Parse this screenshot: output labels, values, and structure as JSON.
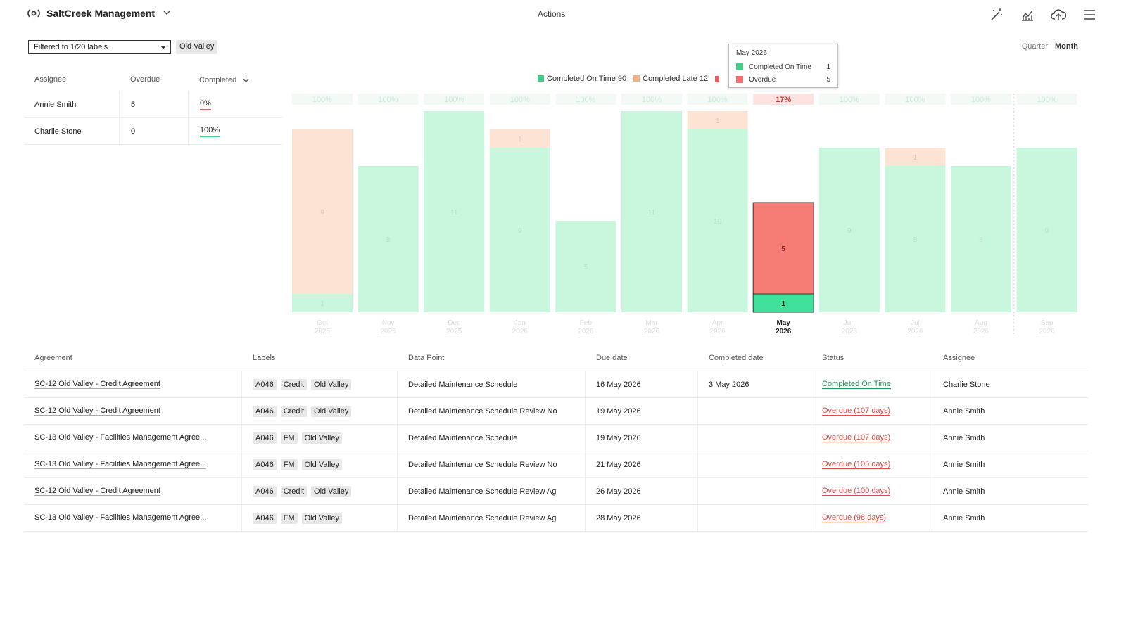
{
  "app": {
    "title": "SaltCreek Management",
    "actions_label": "Actions"
  },
  "header_icons": [
    "magic-wand-icon",
    "chart-icon",
    "cloud-upload-icon",
    "menu-icon"
  ],
  "filter": {
    "select_value": "Filtered to 1/20 labels",
    "chip": "Old Valley"
  },
  "period": {
    "quarter": "Quarter",
    "month": "Month",
    "selected": "Month"
  },
  "assignee_table": {
    "headers": [
      "Assignee",
      "Overdue",
      "Completed"
    ],
    "rows": [
      {
        "name": "Annie Smith",
        "overdue": "5",
        "completed": "0%",
        "bar_color": "#e06060"
      },
      {
        "name": "Charlie Stone",
        "overdue": "0",
        "completed": "100%",
        "bar_color": "#3fcf8a"
      }
    ]
  },
  "legend": {
    "items": [
      {
        "label": "Completed On Time 90",
        "color": "#3fcf8a"
      },
      {
        "label": "Completed Late 12",
        "color": "#f4b183"
      }
    ],
    "clipped_color": "#e06060"
  },
  "tooltip": {
    "title": "May 2026",
    "rows": [
      {
        "label": "Completed On Time",
        "value": "1",
        "color": "#3fcf8a"
      },
      {
        "label": "Overdue",
        "value": "5",
        "color": "#f07070"
      }
    ]
  },
  "colors": {
    "on_time_faded": "#c8f7de",
    "late_faded": "#fde3d4",
    "on_time": "#3fe09a",
    "overdue": "#f47c74",
    "pct_faded_bg": "#f3faf6",
    "pct_hl_bg": "#fde2e2"
  },
  "chart_data": {
    "type": "bar",
    "stacked": true,
    "categories": [
      [
        "Oct",
        "2025"
      ],
      [
        "Nov",
        "2025"
      ],
      [
        "Dec",
        "2025"
      ],
      [
        "Jan",
        "2026"
      ],
      [
        "Feb",
        "2026"
      ],
      [
        "Mar",
        "2026"
      ],
      [
        "Apr",
        "2026"
      ],
      [
        "May",
        "2026"
      ],
      [
        "Jun",
        "2026"
      ],
      [
        "Jul",
        "2026"
      ],
      [
        "Aug",
        "2026"
      ],
      [
        "Sep",
        "2026"
      ]
    ],
    "series": [
      {
        "name": "Completed On Time",
        "values": [
          1,
          8,
          11,
          9,
          5,
          11,
          10,
          1,
          9,
          8,
          8,
          9
        ]
      },
      {
        "name": "Completed Late",
        "values": [
          9,
          0,
          0,
          1,
          0,
          0,
          1,
          0,
          0,
          1,
          0,
          0
        ]
      },
      {
        "name": "Overdue",
        "values": [
          0,
          0,
          0,
          0,
          0,
          0,
          0,
          5,
          0,
          0,
          0,
          0
        ]
      }
    ],
    "percent_labels": [
      "100%",
      "100%",
      "100%",
      "100%",
      "100%",
      "100%",
      "100%",
      "17%",
      "100%",
      "100%",
      "100%",
      "100%"
    ],
    "highlight_index": 7,
    "current_marker_after_index": 10,
    "ylim": [
      0,
      11
    ]
  },
  "main_table": {
    "headers": [
      "Agreement",
      "Labels",
      "Data Point",
      "Due date",
      "Completed date",
      "Status",
      "Assignee"
    ],
    "rows": [
      {
        "agreement": "SC-12 Old Valley - Credit Agreement",
        "labels": [
          "A046",
          "Credit",
          "Old Valley"
        ],
        "data_point": "Detailed Maintenance Schedule",
        "due": "16 May 2026",
        "completed": "3 May 2026",
        "status": "Completed On Time",
        "status_kind": "ok",
        "assignee": "Charlie Stone"
      },
      {
        "agreement": "SC-12 Old Valley - Credit Agreement",
        "labels": [
          "A046",
          "Credit",
          "Old Valley"
        ],
        "data_point": "Detailed Maintenance Schedule Review No",
        "due": "19 May 2026",
        "completed": "",
        "status": "Overdue (107 days)",
        "status_kind": "bad",
        "assignee": "Annie Smith"
      },
      {
        "agreement": "SC-13 Old Valley - Facilities Management Agree...",
        "labels": [
          "A046",
          "FM",
          "Old Valley"
        ],
        "data_point": "Detailed Maintenance Schedule",
        "due": "19 May 2026",
        "completed": "",
        "status": "Overdue (107 days)",
        "status_kind": "bad",
        "assignee": "Annie Smith"
      },
      {
        "agreement": "SC-13 Old Valley - Facilities Management Agree...",
        "labels": [
          "A046",
          "FM",
          "Old Valley"
        ],
        "data_point": "Detailed Maintenance Schedule Review No",
        "due": "21 May 2026",
        "completed": "",
        "status": "Overdue (105 days)",
        "status_kind": "bad",
        "assignee": "Annie Smith"
      },
      {
        "agreement": "SC-12 Old Valley - Credit Agreement",
        "labels": [
          "A046",
          "Credit",
          "Old Valley"
        ],
        "data_point": "Detailed Maintenance Schedule Review Ag",
        "due": "26 May 2026",
        "completed": "",
        "status": "Overdue (100 days)",
        "status_kind": "bad",
        "assignee": "Annie Smith"
      },
      {
        "agreement": "SC-13 Old Valley - Facilities Management Agree...",
        "labels": [
          "A046",
          "FM",
          "Old Valley"
        ],
        "data_point": "Detailed Maintenance Schedule Review Ag",
        "due": "28 May 2026",
        "completed": "",
        "status": "Overdue (98 days)",
        "status_kind": "bad",
        "assignee": "Annie Smith"
      }
    ]
  }
}
